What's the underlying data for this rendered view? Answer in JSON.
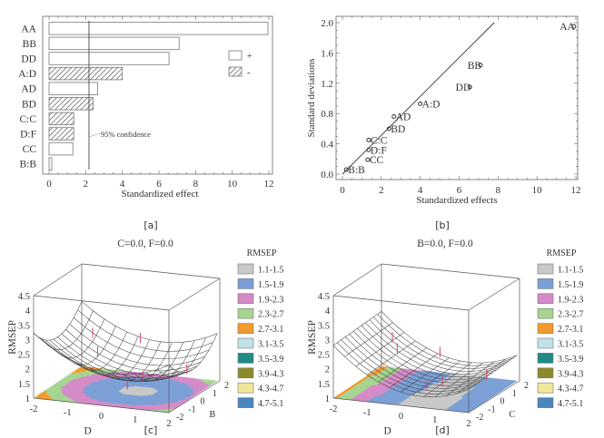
{
  "panel_labels": {
    "a": "[a]",
    "b": "[b]",
    "c": "[c]",
    "d": "[d]"
  },
  "chart_data": [
    {
      "id": "a",
      "type": "bar",
      "orientation": "horizontal",
      "title": "",
      "xlabel": "Standardized effect",
      "ylabel": "",
      "xlim": [
        0,
        12
      ],
      "xticks": [
        "0",
        "2",
        "4",
        "6",
        "8",
        "10",
        "12"
      ],
      "categories": [
        "AA",
        "BB",
        "DD",
        "A:D",
        "AD",
        "BD",
        "C:C",
        "D:F",
        "CC",
        "B:B"
      ],
      "values": [
        11.95,
        7.1,
        6.55,
        4.0,
        2.65,
        2.4,
        1.35,
        1.35,
        1.3,
        0.15
      ],
      "signs": [
        "+",
        "+",
        "+",
        "-",
        "+",
        "-",
        "-",
        "-",
        "+",
        "+"
      ],
      "legend": [
        {
          "label": "+",
          "style": "open"
        },
        {
          "label": "-",
          "style": "hatched"
        }
      ],
      "legend_position": "top-right",
      "reference_line": {
        "value": 2.18,
        "label": "95% confidence"
      }
    },
    {
      "id": "b",
      "type": "scatter",
      "title": "",
      "xlabel": "Standardized effects",
      "ylabel": "Standard deviations",
      "xlim": [
        -0.4,
        12.4
      ],
      "ylim": [
        -0.05,
        2.1
      ],
      "xticks": [
        "0",
        "2",
        "4",
        "6",
        "8",
        "10",
        "12"
      ],
      "yticks": [
        "0.0",
        "0.4",
        "0.8",
        "1.2",
        "1.6",
        "2.0"
      ],
      "points": [
        {
          "label": "AA",
          "x": 11.9,
          "y": 1.95,
          "label_side": "left"
        },
        {
          "label": "BB",
          "x": 7.1,
          "y": 1.44,
          "label_side": "left"
        },
        {
          "label": "DD",
          "x": 6.55,
          "y": 1.15,
          "label_side": "left"
        },
        {
          "label": "A:D",
          "x": 4.0,
          "y": 0.93,
          "label_side": "right"
        },
        {
          "label": "AD",
          "x": 2.65,
          "y": 0.76,
          "label_side": "right"
        },
        {
          "label": "BD",
          "x": 2.4,
          "y": 0.6,
          "label_side": "right"
        },
        {
          "label": "C:C",
          "x": 1.35,
          "y": 0.45,
          "label_side": "right"
        },
        {
          "label": "D:F",
          "x": 1.35,
          "y": 0.32,
          "label_side": "right"
        },
        {
          "label": "CC",
          "x": 1.3,
          "y": 0.19,
          "label_side": "right"
        },
        {
          "label": "B:B",
          "x": 0.2,
          "y": 0.06,
          "label_side": "right"
        }
      ],
      "fit_line": {
        "x": [
          0,
          7.8
        ],
        "y": [
          0,
          2.0
        ]
      }
    },
    {
      "id": "c",
      "type": "surface3d",
      "title": "C=0.0, F=0.0",
      "xlabel": "D",
      "ylabel": "B",
      "zlabel": "RMSEP",
      "xticks": [
        "-2",
        "-1",
        "0",
        "1",
        "2"
      ],
      "yticks": [
        "-2",
        "-1",
        "0",
        "1",
        "2"
      ],
      "zticks": [
        "1",
        "1.5",
        "2",
        "2.5",
        "3",
        "3.5",
        "4",
        "4.5"
      ],
      "zlim": [
        1,
        4.5
      ],
      "surface": "z = 1.45 + 0.18*D^2 + 0.16*B^2 (approx. paraboloid, min near D=0.4,B=0)",
      "legend_title": "RMSEP",
      "legend": [
        {
          "label": "1.1-1.5",
          "color": "#c8c8c8"
        },
        {
          "label": "1.5-1.9",
          "color": "#7a9fd6"
        },
        {
          "label": "1.9-2.3",
          "color": "#d48ac6"
        },
        {
          "label": "2.3-2.7",
          "color": "#a6d490"
        },
        {
          "label": "2.7-3.1",
          "color": "#f39a2c"
        },
        {
          "label": "3.1-3.5",
          "color": "#bfe3e8"
        },
        {
          "label": "3.5-3.9",
          "color": "#1e8a86"
        },
        {
          "label": "3.9-4.3",
          "color": "#8a8a2a"
        },
        {
          "label": "4.3-4.7",
          "color": "#f0e79a"
        },
        {
          "label": "4.7-5.1",
          "color": "#4a86c0"
        }
      ]
    },
    {
      "id": "d",
      "type": "surface3d",
      "title": "B=0.0, F=0.0",
      "xlabel": "D",
      "ylabel": "C",
      "zlabel": "RMSEP",
      "xticks": [
        "-2",
        "-1",
        "0",
        "1",
        "2"
      ],
      "yticks": [
        "-2",
        "-1",
        "0",
        "1",
        "2"
      ],
      "zticks": [
        "1",
        "1.5",
        "2",
        "2.5",
        "3",
        "3.5",
        "4",
        "4.5"
      ],
      "zlim": [
        1,
        4.5
      ],
      "surface": "z = 1.45 + 0.2*(D-0.6)^2 (approx. parabolic trough along C)",
      "legend_title": "RMSEP",
      "legend": [
        {
          "label": "1.1-1.5",
          "color": "#c8c8c8"
        },
        {
          "label": "1.5-1.9",
          "color": "#7a9fd6"
        },
        {
          "label": "1.9-2.3",
          "color": "#d48ac6"
        },
        {
          "label": "2.3-2.7",
          "color": "#a6d490"
        },
        {
          "label": "2.7-3.1",
          "color": "#f39a2c"
        },
        {
          "label": "3.1-3.5",
          "color": "#bfe3e8"
        },
        {
          "label": "3.5-3.9",
          "color": "#1e8a86"
        },
        {
          "label": "3.9-4.3",
          "color": "#8a8a2a"
        },
        {
          "label": "4.3-4.7",
          "color": "#f0e79a"
        },
        {
          "label": "4.7-5.1",
          "color": "#4a86c0"
        }
      ]
    }
  ]
}
